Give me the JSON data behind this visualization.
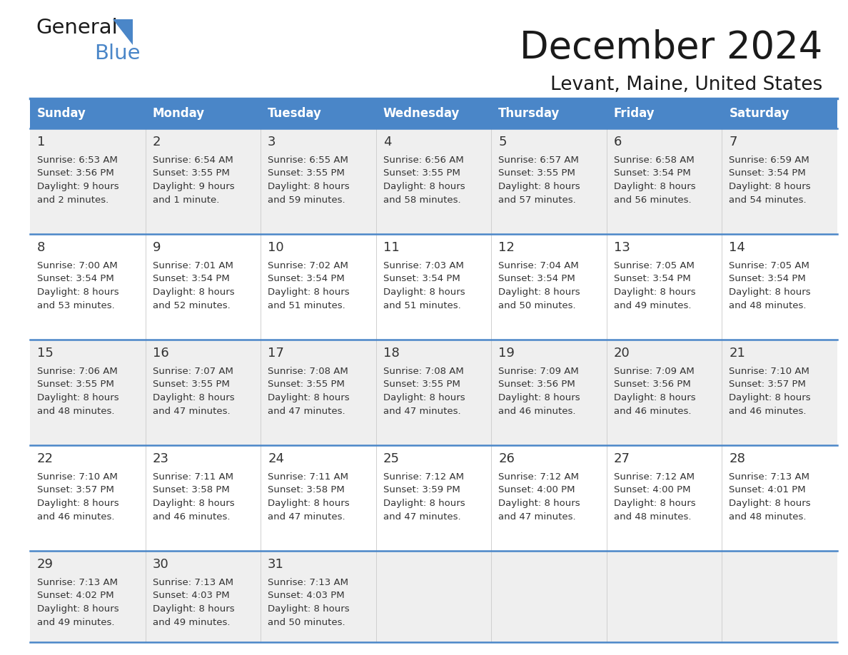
{
  "title": "December 2024",
  "subtitle": "Levant, Maine, United States",
  "header_color": "#4a86c8",
  "header_text_color": "#ffffff",
  "row_bg_odd": "#efefef",
  "row_bg_even": "#ffffff",
  "border_color": "#4a86c8",
  "separator_color": "#c0c0c0",
  "text_color": "#333333",
  "day_headers": [
    "Sunday",
    "Monday",
    "Tuesday",
    "Wednesday",
    "Thursday",
    "Friday",
    "Saturday"
  ],
  "calendar_data": [
    [
      {
        "day": 1,
        "sunrise": "6:53 AM",
        "sunset": "3:56 PM",
        "daylight": "9 hours",
        "daylight2": "and 2 minutes."
      },
      {
        "day": 2,
        "sunrise": "6:54 AM",
        "sunset": "3:55 PM",
        "daylight": "9 hours",
        "daylight2": "and 1 minute."
      },
      {
        "day": 3,
        "sunrise": "6:55 AM",
        "sunset": "3:55 PM",
        "daylight": "8 hours",
        "daylight2": "and 59 minutes."
      },
      {
        "day": 4,
        "sunrise": "6:56 AM",
        "sunset": "3:55 PM",
        "daylight": "8 hours",
        "daylight2": "and 58 minutes."
      },
      {
        "day": 5,
        "sunrise": "6:57 AM",
        "sunset": "3:55 PM",
        "daylight": "8 hours",
        "daylight2": "and 57 minutes."
      },
      {
        "day": 6,
        "sunrise": "6:58 AM",
        "sunset": "3:54 PM",
        "daylight": "8 hours",
        "daylight2": "and 56 minutes."
      },
      {
        "day": 7,
        "sunrise": "6:59 AM",
        "sunset": "3:54 PM",
        "daylight": "8 hours",
        "daylight2": "and 54 minutes."
      }
    ],
    [
      {
        "day": 8,
        "sunrise": "7:00 AM",
        "sunset": "3:54 PM",
        "daylight": "8 hours",
        "daylight2": "and 53 minutes."
      },
      {
        "day": 9,
        "sunrise": "7:01 AM",
        "sunset": "3:54 PM",
        "daylight": "8 hours",
        "daylight2": "and 52 minutes."
      },
      {
        "day": 10,
        "sunrise": "7:02 AM",
        "sunset": "3:54 PM",
        "daylight": "8 hours",
        "daylight2": "and 51 minutes."
      },
      {
        "day": 11,
        "sunrise": "7:03 AM",
        "sunset": "3:54 PM",
        "daylight": "8 hours",
        "daylight2": "and 51 minutes."
      },
      {
        "day": 12,
        "sunrise": "7:04 AM",
        "sunset": "3:54 PM",
        "daylight": "8 hours",
        "daylight2": "and 50 minutes."
      },
      {
        "day": 13,
        "sunrise": "7:05 AM",
        "sunset": "3:54 PM",
        "daylight": "8 hours",
        "daylight2": "and 49 minutes."
      },
      {
        "day": 14,
        "sunrise": "7:05 AM",
        "sunset": "3:54 PM",
        "daylight": "8 hours",
        "daylight2": "and 48 minutes."
      }
    ],
    [
      {
        "day": 15,
        "sunrise": "7:06 AM",
        "sunset": "3:55 PM",
        "daylight": "8 hours",
        "daylight2": "and 48 minutes."
      },
      {
        "day": 16,
        "sunrise": "7:07 AM",
        "sunset": "3:55 PM",
        "daylight": "8 hours",
        "daylight2": "and 47 minutes."
      },
      {
        "day": 17,
        "sunrise": "7:08 AM",
        "sunset": "3:55 PM",
        "daylight": "8 hours",
        "daylight2": "and 47 minutes."
      },
      {
        "day": 18,
        "sunrise": "7:08 AM",
        "sunset": "3:55 PM",
        "daylight": "8 hours",
        "daylight2": "and 47 minutes."
      },
      {
        "day": 19,
        "sunrise": "7:09 AM",
        "sunset": "3:56 PM",
        "daylight": "8 hours",
        "daylight2": "and 46 minutes."
      },
      {
        "day": 20,
        "sunrise": "7:09 AM",
        "sunset": "3:56 PM",
        "daylight": "8 hours",
        "daylight2": "and 46 minutes."
      },
      {
        "day": 21,
        "sunrise": "7:10 AM",
        "sunset": "3:57 PM",
        "daylight": "8 hours",
        "daylight2": "and 46 minutes."
      }
    ],
    [
      {
        "day": 22,
        "sunrise": "7:10 AM",
        "sunset": "3:57 PM",
        "daylight": "8 hours",
        "daylight2": "and 46 minutes."
      },
      {
        "day": 23,
        "sunrise": "7:11 AM",
        "sunset": "3:58 PM",
        "daylight": "8 hours",
        "daylight2": "and 46 minutes."
      },
      {
        "day": 24,
        "sunrise": "7:11 AM",
        "sunset": "3:58 PM",
        "daylight": "8 hours",
        "daylight2": "and 47 minutes."
      },
      {
        "day": 25,
        "sunrise": "7:12 AM",
        "sunset": "3:59 PM",
        "daylight": "8 hours",
        "daylight2": "and 47 minutes."
      },
      {
        "day": 26,
        "sunrise": "7:12 AM",
        "sunset": "4:00 PM",
        "daylight": "8 hours",
        "daylight2": "and 47 minutes."
      },
      {
        "day": 27,
        "sunrise": "7:12 AM",
        "sunset": "4:00 PM",
        "daylight": "8 hours",
        "daylight2": "and 48 minutes."
      },
      {
        "day": 28,
        "sunrise": "7:13 AM",
        "sunset": "4:01 PM",
        "daylight": "8 hours",
        "daylight2": "and 48 minutes."
      }
    ],
    [
      {
        "day": 29,
        "sunrise": "7:13 AM",
        "sunset": "4:02 PM",
        "daylight": "8 hours",
        "daylight2": "and 49 minutes."
      },
      {
        "day": 30,
        "sunrise": "7:13 AM",
        "sunset": "4:03 PM",
        "daylight": "8 hours",
        "daylight2": "and 49 minutes."
      },
      {
        "day": 31,
        "sunrise": "7:13 AM",
        "sunset": "4:03 PM",
        "daylight": "8 hours",
        "daylight2": "and 50 minutes."
      },
      null,
      null,
      null,
      null
    ]
  ]
}
